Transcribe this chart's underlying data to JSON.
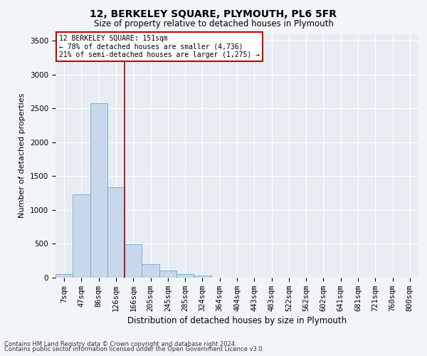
{
  "title": "12, BERKELEY SQUARE, PLYMOUTH, PL6 5FR",
  "subtitle": "Size of property relative to detached houses in Plymouth",
  "xlabel": "Distribution of detached houses by size in Plymouth",
  "ylabel": "Number of detached properties",
  "footnote1": "Contains HM Land Registry data © Crown copyright and database right 2024.",
  "footnote2": "Contains public sector information licensed under the Open Government Licence v3.0.",
  "annotation_line1": "12 BERKELEY SQUARE: 151sqm",
  "annotation_line2": "← 78% of detached houses are smaller (4,736)",
  "annotation_line3": "21% of semi-detached houses are larger (1,275) →",
  "bar_color": "#c8d8ea",
  "bar_edge_color": "#6aaad4",
  "vline_color": "#aa0000",
  "annotation_box_color": "#ffffff",
  "annotation_box_edge": "#cc0000",
  "categories": [
    "7sqm",
    "47sqm",
    "86sqm",
    "126sqm",
    "166sqm",
    "205sqm",
    "245sqm",
    "285sqm",
    "324sqm",
    "364sqm",
    "404sqm",
    "443sqm",
    "483sqm",
    "522sqm",
    "562sqm",
    "602sqm",
    "641sqm",
    "681sqm",
    "721sqm",
    "760sqm",
    "800sqm"
  ],
  "values": [
    50,
    1230,
    2580,
    1330,
    490,
    200,
    110,
    50,
    30,
    0,
    0,
    0,
    0,
    0,
    0,
    0,
    0,
    0,
    0,
    0,
    0
  ],
  "ylim": [
    0,
    3600
  ],
  "yticks": [
    0,
    500,
    1000,
    1500,
    2000,
    2500,
    3000,
    3500
  ],
  "vline_x_index": 3.5,
  "background_color": "#f2f5f8",
  "plot_background": "#e8edf3",
  "title_fontsize": 10,
  "subtitle_fontsize": 8.5,
  "ylabel_fontsize": 8,
  "xlabel_fontsize": 8.5,
  "tick_fontsize": 7.5,
  "annotation_fontsize": 7,
  "footnote_fontsize": 6
}
